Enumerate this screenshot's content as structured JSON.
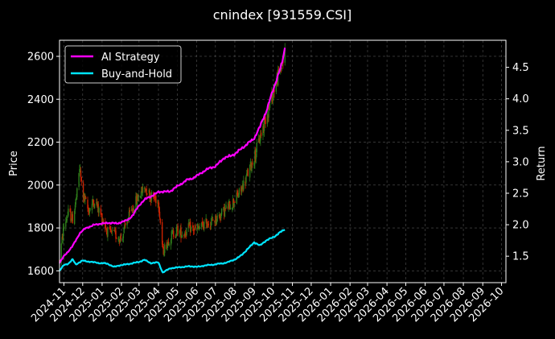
{
  "chart_data": {
    "type": "line",
    "title": "cnindex [931559.CSI]",
    "ylabel_left": "Price",
    "ylabel_right": "Return",
    "left_ylim": [
      1545,
      2675
    ],
    "right_ylim": [
      1.08,
      4.93
    ],
    "left_ticks": [
      1600,
      1800,
      2000,
      2200,
      2400,
      2600
    ],
    "right_ticks": [
      1.5,
      2.0,
      2.5,
      3.0,
      3.5,
      4.0,
      4.5
    ],
    "x_ticks": [
      "2024-11",
      "2024-12",
      "2025-01",
      "2025-02",
      "2025-03",
      "2025-04",
      "2025-05",
      "2025-06",
      "2025-07",
      "2025-08",
      "2025-09",
      "2025-10",
      "2025-11",
      "2025-12",
      "2026-01",
      "2026-02",
      "2026-03",
      "2026-04",
      "2026-05",
      "2026-06",
      "2026-07",
      "2026-08",
      "2026-09",
      "2026-10"
    ],
    "grid": true,
    "legend_position": "upper-left",
    "background": "#000000",
    "candle_up_color": "#2e7d1a",
    "candle_down_color": "#cc2200",
    "price_keypoints": [
      [
        "2024-10-25",
        1650
      ],
      [
        "2024-11-01",
        1810
      ],
      [
        "2024-11-08",
        1870
      ],
      [
        "2024-11-15",
        1840
      ],
      [
        "2024-11-22",
        1960
      ],
      [
        "2024-11-26",
        2080
      ],
      [
        "2024-12-01",
        1960
      ],
      [
        "2024-12-10",
        1880
      ],
      [
        "2024-12-20",
        1930
      ],
      [
        "2025-01-02",
        1840
      ],
      [
        "2025-01-10",
        1780
      ],
      [
        "2025-01-20",
        1770
      ],
      [
        "2025-02-01",
        1750
      ],
      [
        "2025-02-10",
        1830
      ],
      [
        "2025-02-20",
        1900
      ],
      [
        "2025-03-01",
        1950
      ],
      [
        "2025-03-10",
        1990
      ],
      [
        "2025-03-20",
        1950
      ],
      [
        "2025-04-01",
        1930
      ],
      [
        "2025-04-08",
        1690
      ],
      [
        "2025-04-20",
        1760
      ],
      [
        "2025-05-01",
        1790
      ],
      [
        "2025-05-10",
        1770
      ],
      [
        "2025-05-20",
        1800
      ],
      [
        "2025-06-01",
        1790
      ],
      [
        "2025-06-15",
        1820
      ],
      [
        "2025-07-01",
        1840
      ],
      [
        "2025-07-15",
        1880
      ],
      [
        "2025-08-01",
        1930
      ],
      [
        "2025-08-10",
        1970
      ],
      [
        "2025-08-20",
        2040
      ],
      [
        "2025-09-01",
        2130
      ],
      [
        "2025-09-10",
        2220
      ],
      [
        "2025-09-20",
        2320
      ],
      [
        "2025-09-30",
        2420
      ],
      [
        "2025-10-08",
        2500
      ],
      [
        "2025-10-15",
        2560
      ],
      [
        "2025-10-20",
        2610
      ]
    ],
    "series": [
      {
        "name": "AI Strategy",
        "color": "#ff00ff",
        "points": [
          [
            "2024-10-25",
            1.39
          ],
          [
            "2024-11-01",
            1.5
          ],
          [
            "2024-11-15",
            1.66
          ],
          [
            "2024-11-26",
            1.86
          ],
          [
            "2024-12-05",
            1.94
          ],
          [
            "2024-12-20",
            2.0
          ],
          [
            "2025-01-10",
            2.03
          ],
          [
            "2025-01-25",
            2.02
          ],
          [
            "2025-02-10",
            2.07
          ],
          [
            "2025-02-20",
            2.16
          ],
          [
            "2025-03-01",
            2.31
          ],
          [
            "2025-03-10",
            2.4
          ],
          [
            "2025-03-20",
            2.45
          ],
          [
            "2025-04-01",
            2.52
          ],
          [
            "2025-04-20",
            2.53
          ],
          [
            "2025-05-01",
            2.61
          ],
          [
            "2025-05-15",
            2.7
          ],
          [
            "2025-06-01",
            2.77
          ],
          [
            "2025-06-15",
            2.87
          ],
          [
            "2025-07-01",
            2.93
          ],
          [
            "2025-07-15",
            3.06
          ],
          [
            "2025-08-01",
            3.12
          ],
          [
            "2025-08-15",
            3.24
          ],
          [
            "2025-08-25",
            3.31
          ],
          [
            "2025-09-01",
            3.38
          ],
          [
            "2025-09-10",
            3.55
          ],
          [
            "2025-09-20",
            3.8
          ],
          [
            "2025-09-30",
            4.1
          ],
          [
            "2025-10-08",
            4.35
          ],
          [
            "2025-10-15",
            4.55
          ],
          [
            "2025-10-20",
            4.8
          ]
        ]
      },
      {
        "name": "Buy-and-Hold",
        "color": "#00e5ff",
        "points": [
          [
            "2024-10-25",
            1.27
          ],
          [
            "2024-11-01",
            1.36
          ],
          [
            "2024-11-08",
            1.38
          ],
          [
            "2024-11-15",
            1.45
          ],
          [
            "2024-11-20",
            1.37
          ],
          [
            "2024-12-01",
            1.43
          ],
          [
            "2024-12-20",
            1.4
          ],
          [
            "2025-01-10",
            1.38
          ],
          [
            "2025-01-20",
            1.33
          ],
          [
            "2025-02-01",
            1.36
          ],
          [
            "2025-02-15",
            1.38
          ],
          [
            "2025-03-01",
            1.41
          ],
          [
            "2025-03-10",
            1.44
          ],
          [
            "2025-03-20",
            1.39
          ],
          [
            "2025-04-01",
            1.4
          ],
          [
            "2025-04-08",
            1.24
          ],
          [
            "2025-04-20",
            1.31
          ],
          [
            "2025-05-01",
            1.32
          ],
          [
            "2025-05-20",
            1.34
          ],
          [
            "2025-06-01",
            1.33
          ],
          [
            "2025-06-20",
            1.36
          ],
          [
            "2025-07-01",
            1.37
          ],
          [
            "2025-07-20",
            1.4
          ],
          [
            "2025-08-01",
            1.45
          ],
          [
            "2025-08-10",
            1.5
          ],
          [
            "2025-08-20",
            1.6
          ],
          [
            "2025-09-01",
            1.72
          ],
          [
            "2025-09-10",
            1.67
          ],
          [
            "2025-09-20",
            1.75
          ],
          [
            "2025-10-01",
            1.8
          ],
          [
            "2025-10-10",
            1.86
          ],
          [
            "2025-10-20",
            1.93
          ]
        ]
      }
    ]
  }
}
